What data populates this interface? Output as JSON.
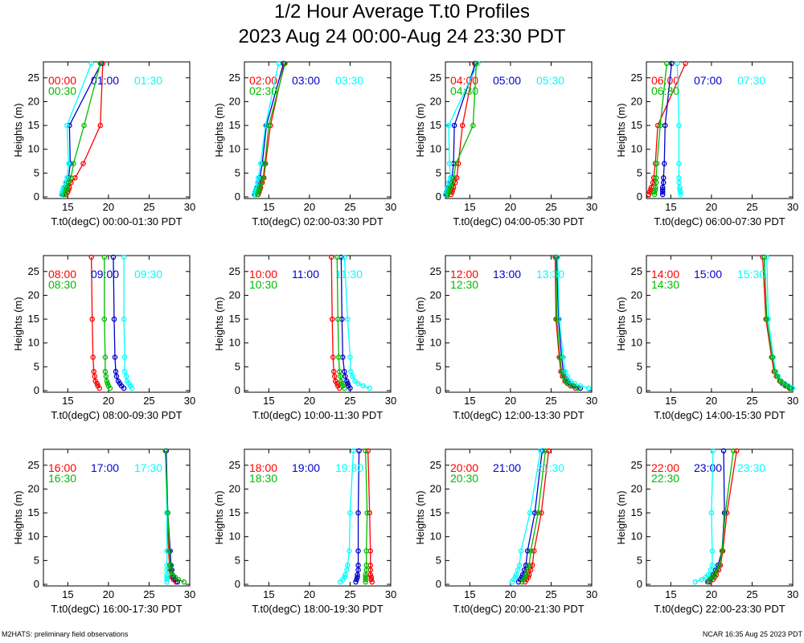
{
  "title": "1/2 Hour Average T.t0 Profiles",
  "subtitle": "2023 Aug 24 00:00-Aug 24 23:30 PDT",
  "footer_left": "M2HATS: preliminary field observations",
  "footer_right": "NCAR 16:35 Aug 25 2023 PDT",
  "colors": [
    "#ff0000",
    "#0000ff",
    "#00ffff",
    "#00cc00"
  ],
  "chart_data": [
    {
      "type": "line",
      "xlabel": "T.t0(degC) 00:00-01:30 PDT",
      "ylabel": "Heights (m)",
      "xlim": [
        12,
        30
      ],
      "ylim": [
        0,
        28
      ],
      "xticks": [
        15,
        20,
        25,
        30
      ],
      "yticks": [
        0,
        5,
        10,
        15,
        20,
        25
      ],
      "heights": [
        0.5,
        1,
        1.5,
        2,
        3,
        4,
        7,
        15,
        28
      ],
      "series": [
        {
          "name": "00:00",
          "color": "red",
          "values": [
            14.8,
            15.0,
            15.1,
            15.2,
            15.4,
            15.9,
            16.9,
            19.0,
            19.3
          ]
        },
        {
          "name": "01:00",
          "color": "blue",
          "values": [
            14.4,
            14.5,
            14.6,
            14.7,
            14.9,
            15.1,
            15.3,
            15.2,
            19.1
          ]
        },
        {
          "name": "01:30",
          "color": "cyan",
          "values": [
            14.2,
            14.3,
            14.4,
            14.5,
            14.7,
            14.9,
            15.1,
            14.9,
            17.9
          ]
        },
        {
          "name": "00:30",
          "color": "green",
          "values": [
            14.6,
            14.7,
            14.8,
            14.9,
            15.1,
            15.4,
            15.7,
            17.0,
            19.0
          ]
        }
      ]
    },
    {
      "type": "line",
      "xlabel": "T.t0(degC) 02:00-03:30 PDT",
      "ylabel": "Heights (m)",
      "xlim": [
        12,
        30
      ],
      "ylim": [
        0,
        28
      ],
      "xticks": [
        15,
        20,
        25,
        30
      ],
      "yticks": [
        0,
        5,
        10,
        15,
        20,
        25
      ],
      "heights": [
        0.5,
        1,
        1.5,
        2,
        3,
        4,
        7,
        15,
        28
      ],
      "series": [
        {
          "name": "02:00",
          "color": "red",
          "values": [
            13.7,
            13.8,
            13.9,
            14.0,
            14.2,
            14.4,
            14.6,
            15.2,
            16.9
          ]
        },
        {
          "name": "03:00",
          "color": "blue",
          "values": [
            13.3,
            13.4,
            13.5,
            13.6,
            13.8,
            13.9,
            14.2,
            14.7,
            16.8
          ]
        },
        {
          "name": "03:30",
          "color": "cyan",
          "values": [
            13.2,
            13.3,
            13.4,
            13.5,
            13.6,
            13.7,
            14.0,
            14.6,
            16.2
          ]
        },
        {
          "name": "02:30",
          "color": "green",
          "values": [
            13.6,
            13.7,
            13.8,
            13.9,
            14.1,
            14.3,
            14.5,
            15.0,
            17.0
          ]
        }
      ]
    },
    {
      "type": "line",
      "xlabel": "T.t0(degC) 04:00-05:30 PDT",
      "ylabel": "Heights (m)",
      "xlim": [
        12,
        30
      ],
      "ylim": [
        0,
        28
      ],
      "xticks": [
        15,
        20,
        25,
        30
      ],
      "yticks": [
        0,
        5,
        10,
        15,
        20,
        25
      ],
      "heights": [
        0.5,
        1,
        1.5,
        2,
        3,
        4,
        7,
        15,
        28
      ],
      "series": [
        {
          "name": "04:00",
          "color": "red",
          "values": [
            12.7,
            12.8,
            12.9,
            13.0,
            13.2,
            13.4,
            13.6,
            14.1,
            15.6
          ]
        },
        {
          "name": "05:00",
          "color": "blue",
          "values": [
            12.1,
            12.2,
            12.3,
            12.4,
            12.6,
            12.8,
            13.0,
            13.1,
            15.7
          ]
        },
        {
          "name": "05:30",
          "color": "cyan",
          "values": [
            12.0,
            12.1,
            12.2,
            12.3,
            12.4,
            12.6,
            12.5,
            12.4,
            16.0
          ]
        },
        {
          "name": "04:30",
          "color": "green",
          "values": [
            12.3,
            12.4,
            12.5,
            12.6,
            12.8,
            13.0,
            13.3,
            15.4,
            15.8
          ]
        }
      ]
    },
    {
      "type": "line",
      "xlabel": "T.t0(degC) 06:00-07:30 PDT",
      "ylabel": "Heights (m)",
      "xlim": [
        12,
        30
      ],
      "ylim": [
        0,
        28
      ],
      "xticks": [
        15,
        20,
        25,
        30
      ],
      "yticks": [
        0,
        5,
        10,
        15,
        20,
        25
      ],
      "heights": [
        0.5,
        1,
        1.5,
        2,
        3,
        4,
        7,
        15,
        28
      ],
      "series": [
        {
          "name": "06:00",
          "color": "red",
          "values": [
            12.3,
            12.4,
            12.5,
            12.6,
            12.8,
            12.9,
            13.1,
            13.4,
            16.8
          ]
        },
        {
          "name": "07:00",
          "color": "blue",
          "values": [
            14.0,
            14.0,
            14.0,
            14.0,
            14.1,
            14.1,
            14.2,
            14.3,
            15.1
          ]
        },
        {
          "name": "07:30",
          "color": "cyan",
          "values": [
            16.2,
            16.2,
            16.1,
            16.1,
            16.0,
            16.0,
            16.0,
            16.0,
            15.8
          ]
        },
        {
          "name": "06:30",
          "color": "green",
          "values": [
            13.0,
            13.0,
            13.1,
            13.1,
            13.2,
            13.2,
            13.3,
            13.7,
            14.5
          ]
        }
      ]
    },
    {
      "type": "line",
      "xlabel": "T.t0(degC) 08:00-09:30 PDT",
      "ylabel": "Heights (m)",
      "xlim": [
        12,
        30
      ],
      "ylim": [
        0,
        28
      ],
      "xticks": [
        15,
        20,
        25,
        30
      ],
      "yticks": [
        0,
        5,
        10,
        15,
        20,
        25
      ],
      "heights": [
        0.5,
        1,
        1.5,
        2,
        3,
        4,
        7,
        15,
        28
      ],
      "series": [
        {
          "name": "08:00",
          "color": "red",
          "values": [
            18.9,
            18.7,
            18.6,
            18.4,
            18.3,
            18.2,
            18.1,
            18.0,
            17.9
          ]
        },
        {
          "name": "09:00",
          "color": "blue",
          "values": [
            21.9,
            21.6,
            21.4,
            21.2,
            21.0,
            20.9,
            20.8,
            20.7,
            20.6
          ]
        },
        {
          "name": "09:30",
          "color": "cyan",
          "values": [
            22.9,
            22.7,
            22.5,
            22.3,
            22.2,
            22.0,
            22.0,
            21.9,
            21.9
          ]
        },
        {
          "name": "08:30",
          "color": "green",
          "values": [
            20.2,
            20.0,
            19.9,
            19.8,
            19.7,
            19.6,
            19.6,
            19.5,
            19.5
          ]
        }
      ]
    },
    {
      "type": "line",
      "xlabel": "T.t0(degC) 10:00-11:30 PDT",
      "ylabel": "Heights (m)",
      "xlim": [
        12,
        30
      ],
      "ylim": [
        0,
        28
      ],
      "xticks": [
        15,
        20,
        25,
        30
      ],
      "yticks": [
        0,
        5,
        10,
        15,
        20,
        25
      ],
      "heights": [
        0.5,
        1,
        1.5,
        2,
        3,
        4,
        7,
        15,
        28
      ],
      "series": [
        {
          "name": "10:00",
          "color": "red",
          "values": [
            23.7,
            23.5,
            23.4,
            23.2,
            23.1,
            23.0,
            22.9,
            22.8,
            22.7
          ]
        },
        {
          "name": "11:00",
          "color": "blue",
          "values": [
            25.0,
            24.8,
            24.7,
            24.6,
            24.4,
            24.3,
            24.1,
            24.0,
            23.9
          ]
        },
        {
          "name": "11:30",
          "color": "cyan",
          "values": [
            27.4,
            26.6,
            26.0,
            25.6,
            25.3,
            25.1,
            25.0,
            24.7,
            24.3
          ]
        },
        {
          "name": "10:30",
          "color": "green",
          "values": [
            24.3,
            24.1,
            24.0,
            23.9,
            23.8,
            23.7,
            23.6,
            23.5,
            23.4
          ]
        }
      ]
    },
    {
      "type": "line",
      "xlabel": "T.t0(degC) 12:00-13:30 PDT",
      "ylabel": "Heights (m)",
      "xlim": [
        12,
        30
      ],
      "ylim": [
        0,
        28
      ],
      "xticks": [
        15,
        20,
        25,
        30
      ],
      "yticks": [
        0,
        5,
        10,
        15,
        20,
        25
      ],
      "heights": [
        0.5,
        1,
        1.5,
        2,
        3,
        4,
        7,
        15,
        28
      ],
      "series": [
        {
          "name": "12:00",
          "color": "red",
          "values": [
            28.0,
            27.4,
            27.0,
            26.7,
            26.4,
            26.2,
            26.0,
            25.6,
            25.5
          ]
        },
        {
          "name": "13:00",
          "color": "blue",
          "values": [
            28.6,
            27.8,
            27.3,
            27.0,
            26.7,
            26.5,
            26.3,
            25.9,
            25.7
          ]
        },
        {
          "name": "13:30",
          "color": "cyan",
          "values": [
            29.6,
            28.6,
            27.9,
            27.4,
            27.0,
            26.7,
            26.5,
            26.0,
            25.8
          ]
        },
        {
          "name": "12:30",
          "color": "green",
          "values": [
            28.3,
            27.6,
            27.1,
            26.8,
            26.5,
            26.3,
            26.1,
            25.7,
            25.6
          ]
        }
      ]
    },
    {
      "type": "line",
      "xlabel": "T.t0(degC) 14:00-15:30 PDT",
      "ylabel": "Heights (m)",
      "xlim": [
        12,
        30
      ],
      "ylim": [
        0,
        28
      ],
      "xticks": [
        15,
        20,
        25,
        30
      ],
      "yticks": [
        0,
        5,
        10,
        15,
        20,
        25
      ],
      "heights": [
        0.5,
        1,
        1.5,
        2,
        3,
        4,
        7,
        15,
        28
      ],
      "series": [
        {
          "name": "14:00",
          "color": "red",
          "values": [
            29.6,
            29.1,
            28.7,
            28.4,
            28.0,
            27.7,
            27.4,
            26.7,
            26.3
          ]
        },
        {
          "name": "15:00",
          "color": "blue",
          "values": [
            29.8,
            29.3,
            28.9,
            28.5,
            28.1,
            27.8,
            27.5,
            26.8,
            26.5
          ]
        },
        {
          "name": "15:30",
          "color": "cyan",
          "values": [
            30.0,
            29.5,
            29.0,
            28.6,
            28.2,
            27.9,
            27.6,
            27.0,
            26.8
          ]
        },
        {
          "name": "14:30",
          "color": "green",
          "values": [
            29.7,
            29.2,
            28.8,
            28.5,
            28.1,
            27.8,
            27.5,
            26.8,
            26.5
          ]
        }
      ]
    },
    {
      "type": "line",
      "xlabel": "T.t0(degC) 16:00-17:30 PDT",
      "ylabel": "Heights (m)",
      "xlim": [
        12,
        30
      ],
      "ylim": [
        0,
        28
      ],
      "xticks": [
        15,
        20,
        25,
        30
      ],
      "yticks": [
        0,
        5,
        10,
        15,
        20,
        25
      ],
      "heights": [
        0.5,
        1,
        1.5,
        2,
        3,
        4,
        7,
        15,
        28
      ],
      "series": [
        {
          "name": "16:00",
          "color": "red",
          "values": [
            28.3,
            28.0,
            27.8,
            27.7,
            27.6,
            27.5,
            27.4,
            27.2,
            27.1
          ]
        },
        {
          "name": "17:00",
          "color": "blue",
          "values": [
            28.5,
            28.2,
            28.0,
            27.9,
            27.8,
            27.7,
            27.6,
            27.3,
            27.1
          ]
        },
        {
          "name": "17:30",
          "color": "cyan",
          "values": [
            27.2,
            27.2,
            27.2,
            27.2,
            27.2,
            27.2,
            27.2,
            27.2,
            27.0
          ]
        },
        {
          "name": "16:30",
          "color": "green",
          "values": [
            29.3,
            28.6,
            28.2,
            27.9,
            27.7,
            27.6,
            27.5,
            27.3,
            27.0
          ]
        }
      ]
    },
    {
      "type": "line",
      "xlabel": "T.t0(degC) 18:00-19:30 PDT",
      "ylabel": "Heights (m)",
      "xlim": [
        12,
        30
      ],
      "ylim": [
        0,
        28
      ],
      "xticks": [
        15,
        20,
        25,
        30
      ],
      "yticks": [
        0,
        5,
        10,
        15,
        20,
        25
      ],
      "heights": [
        0.5,
        1,
        1.5,
        2,
        3,
        4,
        7,
        15,
        28
      ],
      "series": [
        {
          "name": "18:00",
          "color": "red",
          "values": [
            27.7,
            27.6,
            27.6,
            27.5,
            27.5,
            27.5,
            27.5,
            27.4,
            27.2
          ]
        },
        {
          "name": "19:00",
          "color": "blue",
          "values": [
            25.7,
            25.8,
            25.9,
            25.9,
            26.0,
            26.0,
            26.0,
            26.0,
            26.1
          ]
        },
        {
          "name": "19:30",
          "color": "cyan",
          "values": [
            23.8,
            24.1,
            24.3,
            24.4,
            24.6,
            24.7,
            24.9,
            25.0,
            25.4
          ]
        },
        {
          "name": "18:30",
          "color": "green",
          "values": [
            26.9,
            26.9,
            26.9,
            26.9,
            27.0,
            27.0,
            27.0,
            27.1,
            26.9
          ]
        }
      ]
    },
    {
      "type": "line",
      "xlabel": "T.t0(degC) 20:00-21:30 PDT",
      "ylabel": "Heights (m)",
      "xlim": [
        12,
        30
      ],
      "ylim": [
        0,
        28
      ],
      "xticks": [
        15,
        20,
        25,
        30
      ],
      "yticks": [
        0,
        5,
        10,
        15,
        20,
        25
      ],
      "heights": [
        0.5,
        1,
        1.5,
        2,
        3,
        4,
        7,
        15,
        28
      ],
      "series": [
        {
          "name": "20:00",
          "color": "red",
          "values": [
            21.8,
            22.0,
            22.2,
            22.3,
            22.5,
            22.7,
            22.9,
            23.8,
            24.7
          ]
        },
        {
          "name": "21:00",
          "color": "blue",
          "values": [
            21.0,
            21.2,
            21.4,
            21.5,
            21.7,
            21.9,
            22.1,
            23.0,
            23.9
          ]
        },
        {
          "name": "21:30",
          "color": "cyan",
          "values": [
            20.2,
            20.4,
            20.6,
            20.7,
            20.9,
            21.1,
            21.3,
            22.4,
            23.7
          ]
        },
        {
          "name": "20:30",
          "color": "green",
          "values": [
            21.4,
            21.6,
            21.8,
            21.9,
            22.1,
            22.3,
            22.5,
            23.4,
            24.3
          ]
        }
      ]
    },
    {
      "type": "line",
      "xlabel": "T.t0(degC) 22:00-23:30 PDT",
      "ylabel": "Heights (m)",
      "xlim": [
        12,
        30
      ],
      "ylim": [
        0,
        28
      ],
      "xticks": [
        15,
        20,
        25,
        30
      ],
      "yticks": [
        0,
        5,
        10,
        15,
        20,
        25
      ],
      "heights": [
        0.5,
        1,
        1.5,
        2,
        3,
        4,
        7,
        15,
        28
      ],
      "series": [
        {
          "name": "22:00",
          "color": "red",
          "values": [
            19.8,
            20.2,
            20.4,
            20.6,
            20.9,
            21.1,
            21.4,
            21.9,
            23.1
          ]
        },
        {
          "name": "23:00",
          "color": "blue",
          "values": [
            19.6,
            19.8,
            20.0,
            20.2,
            20.5,
            20.8,
            21.3,
            21.6,
            21.5
          ]
        },
        {
          "name": "23:30",
          "color": "cyan",
          "values": [
            18.0,
            18.8,
            19.3,
            19.6,
            19.9,
            20.1,
            20.1,
            20.0,
            20.2
          ]
        },
        {
          "name": "22:30",
          "color": "green",
          "values": [
            19.5,
            19.9,
            20.1,
            20.4,
            20.7,
            21.0,
            21.3,
            21.7,
            22.7
          ]
        }
      ]
    }
  ]
}
